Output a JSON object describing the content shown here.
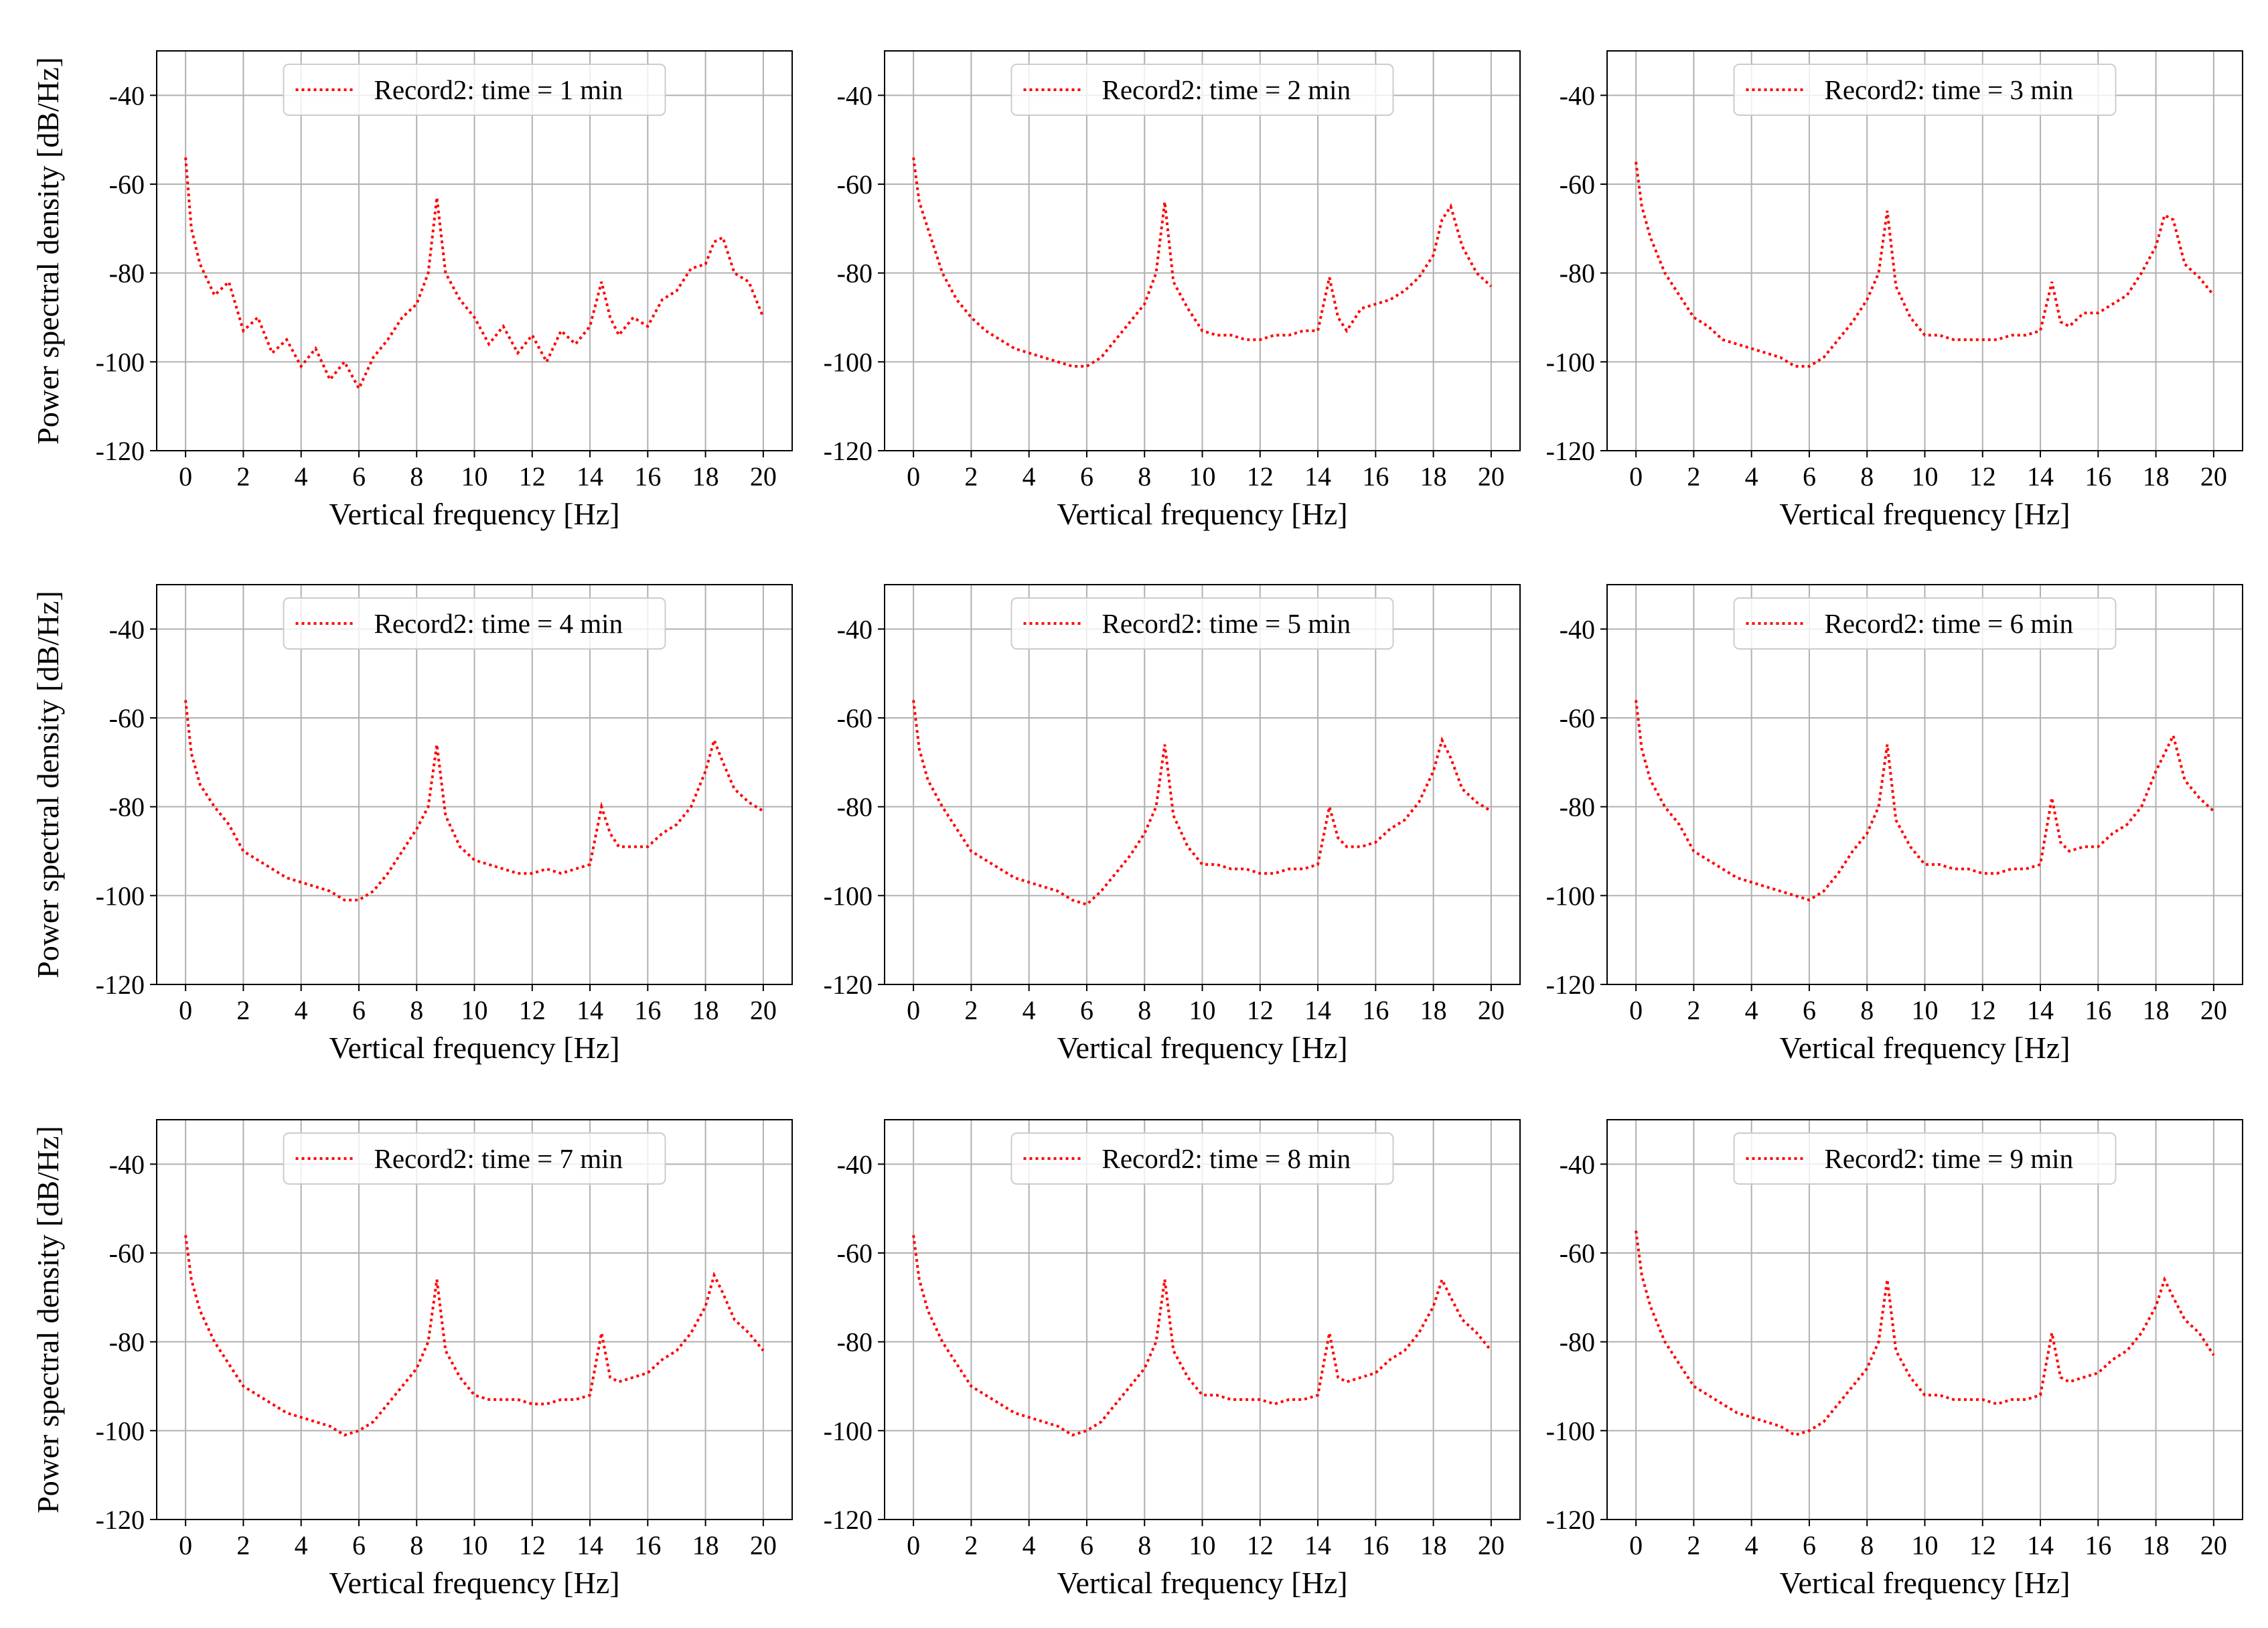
{
  "chart_data": [
    {
      "type": "line",
      "xlabel": "Vertical frequency [Hz]",
      "ylabel": "Power spectral density [dB/Hz]",
      "legend": "upper center",
      "grid": true,
      "xlim": [
        -1,
        21
      ],
      "ylim": [
        -120,
        -30
      ],
      "xticks": [
        0,
        2,
        4,
        6,
        8,
        10,
        12,
        14,
        16,
        18,
        20
      ],
      "yticks": [
        -120,
        -100,
        -80,
        -60,
        -40
      ],
      "x": [
        0,
        0.2,
        0.5,
        1,
        1.5,
        2,
        2.5,
        3,
        3.5,
        4,
        4.5,
        5,
        5.5,
        6,
        6.5,
        7,
        7.5,
        8,
        8.4,
        8.7,
        9,
        9.5,
        10,
        10.5,
        11,
        11.5,
        12,
        12.5,
        13,
        13.5,
        14,
        14.4,
        14.7,
        15,
        15.5,
        16,
        16.5,
        17,
        17.5,
        18,
        18.3,
        18.6,
        19,
        19.5,
        20
      ],
      "series": [
        {
          "name": "Record2: time = 1 min",
          "color": "#ff0000",
          "linestyle": "dotted",
          "values": [
            -54,
            -70,
            -78,
            -85,
            -82,
            -93,
            -90,
            -98,
            -95,
            -101,
            -97,
            -104,
            -100,
            -106,
            -99,
            -95,
            -90,
            -87,
            -80,
            -63,
            -80,
            -86,
            -90,
            -96,
            -92,
            -98,
            -94,
            -100,
            -93,
            -96,
            -92,
            -82,
            -90,
            -94,
            -90,
            -92,
            -86,
            -84,
            -79,
            -78,
            -73,
            -72,
            -80,
            -82,
            -90
          ]
        }
      ]
    },
    {
      "type": "line",
      "xlabel": "Vertical frequency [Hz]",
      "legend": "upper center",
      "grid": true,
      "xlim": [
        -1,
        21
      ],
      "ylim": [
        -120,
        -30
      ],
      "xticks": [
        0,
        2,
        4,
        6,
        8,
        10,
        12,
        14,
        16,
        18,
        20
      ],
      "yticks": [
        -120,
        -100,
        -80,
        -60,
        -40
      ],
      "x": [
        0,
        0.2,
        0.5,
        1,
        1.5,
        2,
        2.5,
        3,
        3.5,
        4,
        4.5,
        5,
        5.5,
        6,
        6.5,
        7,
        7.5,
        8,
        8.4,
        8.7,
        9,
        9.5,
        10,
        10.5,
        11,
        11.5,
        12,
        12.5,
        13,
        13.5,
        14,
        14.4,
        14.7,
        15,
        15.5,
        16,
        16.5,
        17,
        17.5,
        18,
        18.3,
        18.6,
        19,
        19.5,
        20
      ],
      "series": [
        {
          "name": "Record2: time = 2 min",
          "color": "#ff0000",
          "linestyle": "dotted",
          "values": [
            -54,
            -64,
            -70,
            -80,
            -86,
            -90,
            -93,
            -95,
            -97,
            -98,
            -99,
            -100,
            -101,
            -101,
            -99,
            -95,
            -91,
            -87,
            -80,
            -64,
            -82,
            -88,
            -93,
            -94,
            -94,
            -95,
            -95,
            -94,
            -94,
            -93,
            -93,
            -81,
            -90,
            -93,
            -88,
            -87,
            -86,
            -84,
            -81,
            -76,
            -68,
            -65,
            -74,
            -80,
            -83
          ]
        }
      ]
    },
    {
      "type": "line",
      "xlabel": "Vertical frequency [Hz]",
      "legend": "upper center",
      "grid": true,
      "xlim": [
        -1,
        21
      ],
      "ylim": [
        -120,
        -30
      ],
      "xticks": [
        0,
        2,
        4,
        6,
        8,
        10,
        12,
        14,
        16,
        18,
        20
      ],
      "yticks": [
        -120,
        -100,
        -80,
        -60,
        -40
      ],
      "x": [
        0,
        0.2,
        0.5,
        1,
        1.5,
        2,
        2.5,
        3,
        3.5,
        4,
        4.5,
        5,
        5.5,
        6,
        6.5,
        7,
        7.5,
        8,
        8.4,
        8.7,
        9,
        9.5,
        10,
        10.5,
        11,
        11.5,
        12,
        12.5,
        13,
        13.5,
        14,
        14.4,
        14.7,
        15,
        15.5,
        16,
        16.5,
        17,
        17.5,
        18,
        18.3,
        18.6,
        19,
        19.5,
        20
      ],
      "series": [
        {
          "name": "Record2: time = 3 min",
          "color": "#ff0000",
          "linestyle": "dotted",
          "values": [
            -55,
            -65,
            -72,
            -80,
            -85,
            -90,
            -92,
            -95,
            -96,
            -97,
            -98,
            -99,
            -101,
            -101,
            -99,
            -95,
            -91,
            -86,
            -80,
            -66,
            -83,
            -90,
            -94,
            -94,
            -95,
            -95,
            -95,
            -95,
            -94,
            -94,
            -93,
            -82,
            -91,
            -92,
            -89,
            -89,
            -87,
            -85,
            -80,
            -74,
            -67,
            -68,
            -78,
            -81,
            -85
          ]
        }
      ]
    },
    {
      "type": "line",
      "xlabel": "Vertical frequency [Hz]",
      "ylabel": "Power spectral density [dB/Hz]",
      "legend": "upper center",
      "grid": true,
      "xlim": [
        -1,
        21
      ],
      "ylim": [
        -120,
        -30
      ],
      "xticks": [
        0,
        2,
        4,
        6,
        8,
        10,
        12,
        14,
        16,
        18,
        20
      ],
      "yticks": [
        -120,
        -100,
        -80,
        -60,
        -40
      ],
      "x": [
        0,
        0.2,
        0.5,
        1,
        1.5,
        2,
        2.5,
        3,
        3.5,
        4,
        4.5,
        5,
        5.5,
        6,
        6.5,
        7,
        7.5,
        8,
        8.4,
        8.7,
        9,
        9.5,
        10,
        10.5,
        11,
        11.5,
        12,
        12.5,
        13,
        13.5,
        14,
        14.4,
        14.7,
        15,
        15.5,
        16,
        16.5,
        17,
        17.5,
        18,
        18.3,
        18.6,
        19,
        19.5,
        20
      ],
      "series": [
        {
          "name": "Record2: time = 4 min",
          "color": "#ff0000",
          "linestyle": "dotted",
          "values": [
            -56,
            -68,
            -75,
            -80,
            -84,
            -90,
            -92,
            -94,
            -96,
            -97,
            -98,
            -99,
            -101,
            -101,
            -99,
            -95,
            -90,
            -85,
            -80,
            -66,
            -82,
            -89,
            -92,
            -93,
            -94,
            -95,
            -95,
            -94,
            -95,
            -94,
            -93,
            -80,
            -86,
            -89,
            -89,
            -89,
            -86,
            -84,
            -80,
            -72,
            -65,
            -70,
            -76,
            -79,
            -81
          ]
        }
      ]
    },
    {
      "type": "line",
      "xlabel": "Vertical frequency [Hz]",
      "legend": "upper center",
      "grid": true,
      "xlim": [
        -1,
        21
      ],
      "ylim": [
        -120,
        -30
      ],
      "xticks": [
        0,
        2,
        4,
        6,
        8,
        10,
        12,
        14,
        16,
        18,
        20
      ],
      "yticks": [
        -120,
        -100,
        -80,
        -60,
        -40
      ],
      "x": [
        0,
        0.2,
        0.5,
        1,
        1.5,
        2,
        2.5,
        3,
        3.5,
        4,
        4.5,
        5,
        5.5,
        6,
        6.5,
        7,
        7.5,
        8,
        8.4,
        8.7,
        9,
        9.5,
        10,
        10.5,
        11,
        11.5,
        12,
        12.5,
        13,
        13.5,
        14,
        14.4,
        14.7,
        15,
        15.5,
        16,
        16.5,
        17,
        17.5,
        18,
        18.3,
        18.6,
        19,
        19.5,
        20
      ],
      "series": [
        {
          "name": "Record2: time = 5 min",
          "color": "#ff0000",
          "linestyle": "dotted",
          "values": [
            -56,
            -67,
            -74,
            -80,
            -85,
            -90,
            -92,
            -94,
            -96,
            -97,
            -98,
            -99,
            -101,
            -102,
            -99,
            -95,
            -91,
            -86,
            -80,
            -66,
            -82,
            -89,
            -93,
            -93,
            -94,
            -94,
            -95,
            -95,
            -94,
            -94,
            -93,
            -80,
            -87,
            -89,
            -89,
            -88,
            -85,
            -83,
            -79,
            -72,
            -65,
            -69,
            -76,
            -79,
            -81
          ]
        }
      ]
    },
    {
      "type": "line",
      "xlabel": "Vertical frequency [Hz]",
      "legend": "upper center",
      "grid": true,
      "xlim": [
        -1,
        21
      ],
      "ylim": [
        -120,
        -30
      ],
      "xticks": [
        0,
        2,
        4,
        6,
        8,
        10,
        12,
        14,
        16,
        18,
        20
      ],
      "yticks": [
        -120,
        -100,
        -80,
        -60,
        -40
      ],
      "x": [
        0,
        0.2,
        0.5,
        1,
        1.5,
        2,
        2.5,
        3,
        3.5,
        4,
        4.5,
        5,
        5.5,
        6,
        6.5,
        7,
        7.5,
        8,
        8.4,
        8.7,
        9,
        9.5,
        10,
        10.5,
        11,
        11.5,
        12,
        12.5,
        13,
        13.5,
        14,
        14.4,
        14.7,
        15,
        15.5,
        16,
        16.5,
        17,
        17.5,
        18,
        18.3,
        18.6,
        19,
        19.5,
        20
      ],
      "series": [
        {
          "name": "Record2: time = 6 min",
          "color": "#ff0000",
          "linestyle": "dotted",
          "values": [
            -56,
            -67,
            -74,
            -80,
            -84,
            -90,
            -92,
            -94,
            -96,
            -97,
            -98,
            -99,
            -100,
            -101,
            -99,
            -95,
            -90,
            -86,
            -80,
            -66,
            -83,
            -89,
            -93,
            -93,
            -94,
            -94,
            -95,
            -95,
            -94,
            -94,
            -93,
            -78,
            -88,
            -90,
            -89,
            -89,
            -86,
            -84,
            -80,
            -72,
            -68,
            -64,
            -74,
            -78,
            -81
          ]
        }
      ]
    },
    {
      "type": "line",
      "xlabel": "Vertical frequency [Hz]",
      "ylabel": "Power spectral density [dB/Hz]",
      "legend": "upper center",
      "grid": true,
      "xlim": [
        -1,
        21
      ],
      "ylim": [
        -120,
        -30
      ],
      "xticks": [
        0,
        2,
        4,
        6,
        8,
        10,
        12,
        14,
        16,
        18,
        20
      ],
      "yticks": [
        -120,
        -100,
        -80,
        -60,
        -40
      ],
      "x": [
        0,
        0.2,
        0.5,
        1,
        1.5,
        2,
        2.5,
        3,
        3.5,
        4,
        4.5,
        5,
        5.5,
        6,
        6.5,
        7,
        7.5,
        8,
        8.4,
        8.7,
        9,
        9.5,
        10,
        10.5,
        11,
        11.5,
        12,
        12.5,
        13,
        13.5,
        14,
        14.4,
        14.7,
        15,
        15.5,
        16,
        16.5,
        17,
        17.5,
        18,
        18.3,
        18.6,
        19,
        19.5,
        20
      ],
      "series": [
        {
          "name": "Record2: time = 7 min",
          "color": "#ff0000",
          "linestyle": "dotted",
          "values": [
            -56,
            -66,
            -73,
            -80,
            -85,
            -90,
            -92,
            -94,
            -96,
            -97,
            -98,
            -99,
            -101,
            -100,
            -98,
            -94,
            -90,
            -86,
            -80,
            -66,
            -82,
            -88,
            -92,
            -93,
            -93,
            -93,
            -94,
            -94,
            -93,
            -93,
            -92,
            -78,
            -88,
            -89,
            -88,
            -87,
            -84,
            -82,
            -78,
            -72,
            -65,
            -69,
            -75,
            -78,
            -82
          ]
        }
      ]
    },
    {
      "type": "line",
      "xlabel": "Vertical frequency [Hz]",
      "legend": "upper center",
      "grid": true,
      "xlim": [
        -1,
        21
      ],
      "ylim": [
        -120,
        -30
      ],
      "xticks": [
        0,
        2,
        4,
        6,
        8,
        10,
        12,
        14,
        16,
        18,
        20
      ],
      "yticks": [
        -120,
        -100,
        -80,
        -60,
        -40
      ],
      "x": [
        0,
        0.2,
        0.5,
        1,
        1.5,
        2,
        2.5,
        3,
        3.5,
        4,
        4.5,
        5,
        5.5,
        6,
        6.5,
        7,
        7.5,
        8,
        8.4,
        8.7,
        9,
        9.5,
        10,
        10.5,
        11,
        11.5,
        12,
        12.5,
        13,
        13.5,
        14,
        14.4,
        14.7,
        15,
        15.5,
        16,
        16.5,
        17,
        17.5,
        18,
        18.3,
        18.6,
        19,
        19.5,
        20
      ],
      "series": [
        {
          "name": "Record2: time = 8 min",
          "color": "#ff0000",
          "linestyle": "dotted",
          "values": [
            -56,
            -66,
            -73,
            -80,
            -85,
            -90,
            -92,
            -94,
            -96,
            -97,
            -98,
            -99,
            -101,
            -100,
            -98,
            -94,
            -90,
            -86,
            -80,
            -66,
            -82,
            -88,
            -92,
            -92,
            -93,
            -93,
            -93,
            -94,
            -93,
            -93,
            -92,
            -78,
            -88,
            -89,
            -88,
            -87,
            -84,
            -82,
            -78,
            -72,
            -66,
            -70,
            -75,
            -78,
            -82
          ]
        }
      ]
    },
    {
      "type": "line",
      "xlabel": "Vertical frequency [Hz]",
      "legend": "upper center",
      "grid": true,
      "xlim": [
        -1,
        21
      ],
      "ylim": [
        -120,
        -30
      ],
      "xticks": [
        0,
        2,
        4,
        6,
        8,
        10,
        12,
        14,
        16,
        18,
        20
      ],
      "yticks": [
        -120,
        -100,
        -80,
        -60,
        -40
      ],
      "x": [
        0,
        0.2,
        0.5,
        1,
        1.5,
        2,
        2.5,
        3,
        3.5,
        4,
        4.5,
        5,
        5.5,
        6,
        6.5,
        7,
        7.5,
        8,
        8.4,
        8.7,
        9,
        9.5,
        10,
        10.5,
        11,
        11.5,
        12,
        12.5,
        13,
        13.5,
        14,
        14.4,
        14.7,
        15,
        15.5,
        16,
        16.5,
        17,
        17.5,
        18,
        18.3,
        18.6,
        19,
        19.5,
        20
      ],
      "series": [
        {
          "name": "Record2: time = 9 min",
          "color": "#ff0000",
          "linestyle": "dotted",
          "values": [
            -55,
            -65,
            -72,
            -80,
            -85,
            -90,
            -92,
            -94,
            -96,
            -97,
            -98,
            -99,
            -101,
            -100,
            -98,
            -94,
            -90,
            -86,
            -80,
            -66,
            -82,
            -88,
            -92,
            -92,
            -93,
            -93,
            -93,
            -94,
            -93,
            -93,
            -92,
            -78,
            -88,
            -89,
            -88,
            -87,
            -84,
            -82,
            -78,
            -72,
            -66,
            -70,
            -75,
            -78,
            -83
          ]
        }
      ]
    }
  ]
}
